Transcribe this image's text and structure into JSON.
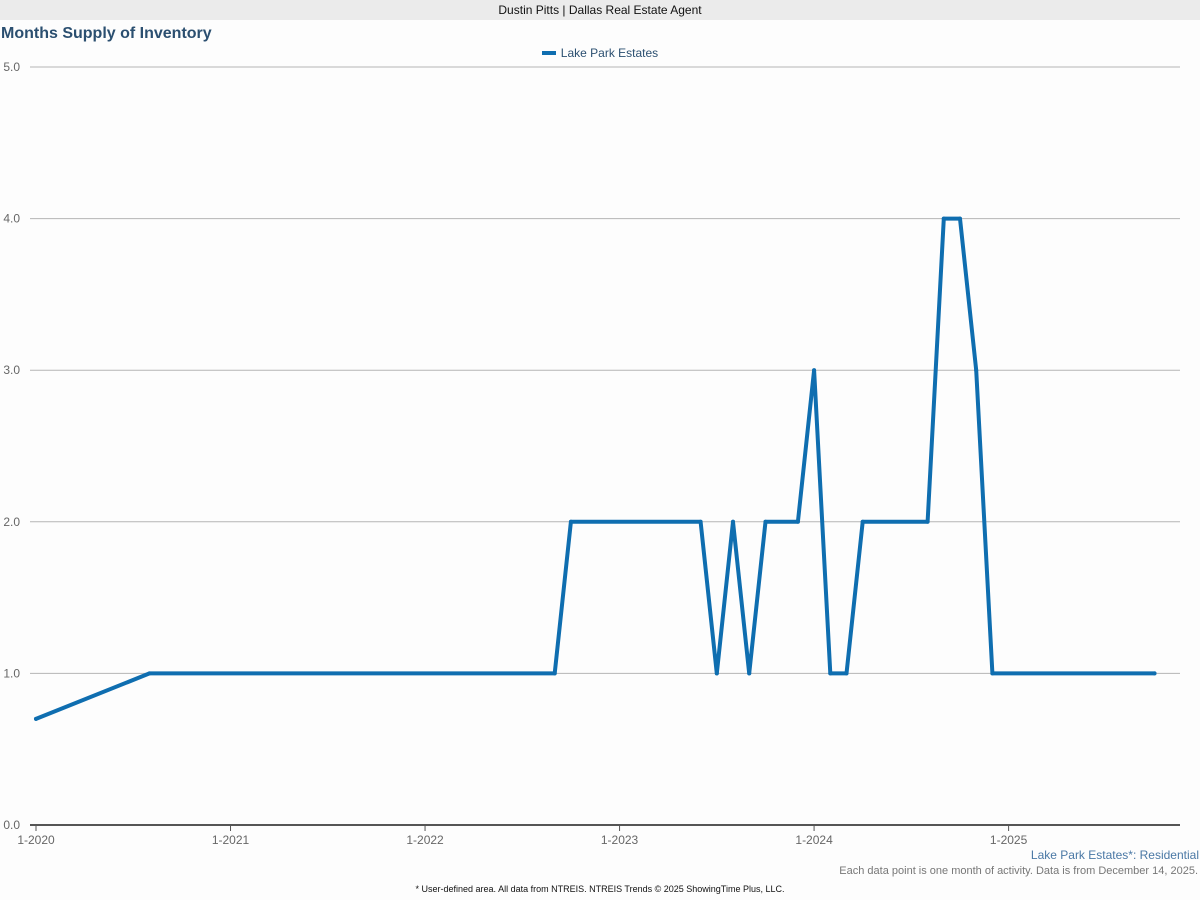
{
  "header": {
    "banner": "Dustin Pitts | Dallas Real Estate Agent"
  },
  "chart_data": {
    "type": "line",
    "title": "Months Supply of Inventory",
    "xlabel": "",
    "ylabel": "",
    "ylim": [
      0,
      5
    ],
    "yticks": [
      "0.0",
      "1.0",
      "2.0",
      "3.0",
      "4.0",
      "5.0"
    ],
    "xticks": [
      "1-2020",
      "1-2021",
      "1-2022",
      "1-2023",
      "1-2024",
      "1-2025"
    ],
    "grid": true,
    "legend_position": "top-center",
    "series": [
      {
        "name": "Lake Park Estates",
        "color": "#0f6eb0",
        "points": [
          {
            "x": "1-2020",
            "y": 0.7
          },
          {
            "x": "8-2020",
            "y": 1.0
          },
          {
            "x": "9-2022",
            "y": 1.0
          },
          {
            "x": "10-2022",
            "y": 2.0
          },
          {
            "x": "6-2023",
            "y": 2.0
          },
          {
            "x": "7-2023",
            "y": 1.0
          },
          {
            "x": "8-2023",
            "y": 2.0
          },
          {
            "x": "9-2023",
            "y": 1.0
          },
          {
            "x": "10-2023",
            "y": 2.0
          },
          {
            "x": "12-2023",
            "y": 2.0
          },
          {
            "x": "1-2024",
            "y": 3.0
          },
          {
            "x": "2-2024",
            "y": 1.0
          },
          {
            "x": "3-2024",
            "y": 1.0
          },
          {
            "x": "4-2024",
            "y": 2.0
          },
          {
            "x": "8-2024",
            "y": 2.0
          },
          {
            "x": "9-2024",
            "y": 4.0
          },
          {
            "x": "10-2024",
            "y": 4.0
          },
          {
            "x": "11-2024",
            "y": 3.0
          },
          {
            "x": "12-2024",
            "y": 1.0
          },
          {
            "x": "10-2025",
            "y": 1.0
          }
        ]
      }
    ]
  },
  "footer": {
    "area": "Lake Park Estates*: Residential",
    "note": "Each data point is one month of activity. Data is from December 14, 2025.",
    "source": "* User-defined area. All data from NTREIS. NTREIS Trends © 2025 ShowingTime Plus, LLC."
  }
}
